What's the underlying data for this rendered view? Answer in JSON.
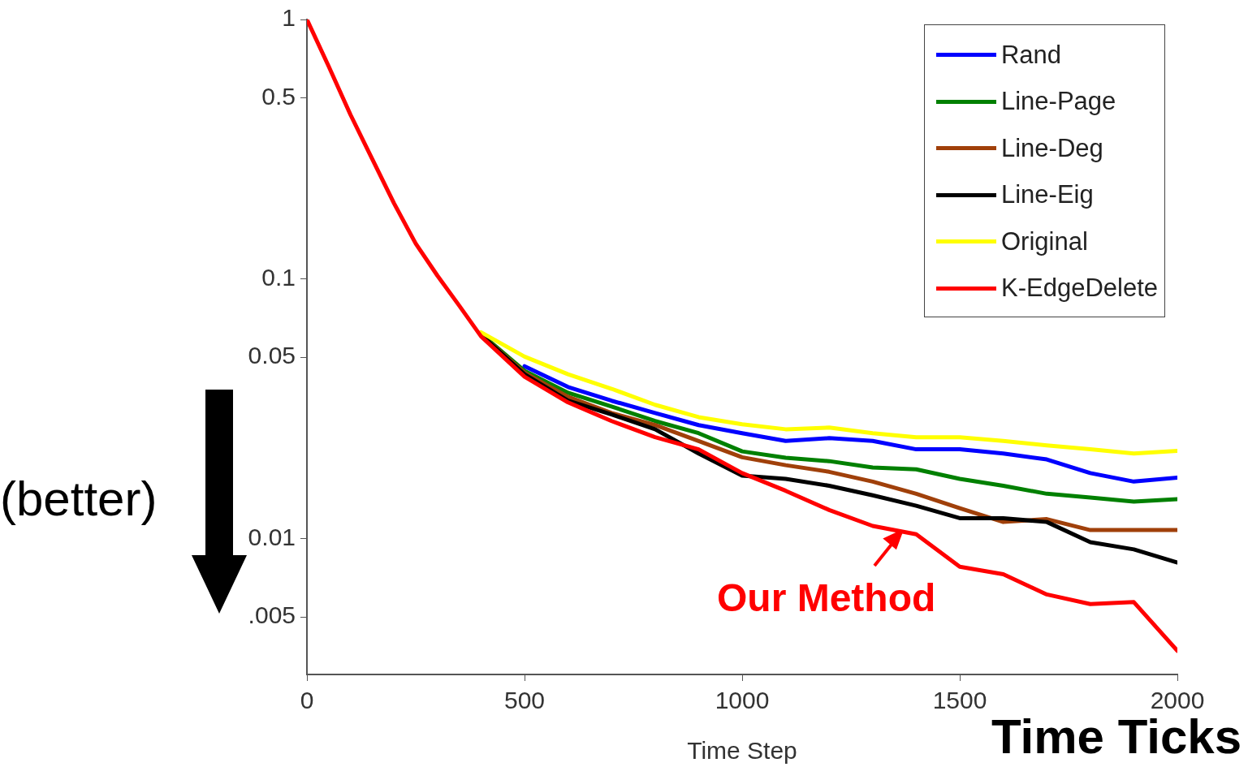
{
  "chart_data": {
    "type": "line",
    "xlabel": "Time Step",
    "log": "y",
    "grid": false,
    "legend": "top right",
    "marker": "none",
    "line_style": "solid",
    "xlim": [
      0,
      2000
    ],
    "xticks": [
      0,
      500,
      1000,
      1500,
      2000
    ],
    "ylim": [
      0.003,
      1
    ],
    "yticks": [
      1,
      0.5,
      0.1,
      0.05,
      0.01,
      {
        "value": 0.005,
        "label": ".005"
      }
    ],
    "x": [
      0,
      50,
      100,
      150,
      200,
      250,
      300,
      350,
      400,
      500,
      600,
      700,
      800,
      900,
      1000,
      1100,
      1200,
      1300,
      1400,
      1500,
      1600,
      1700,
      1800,
      1900,
      2000
    ],
    "series": [
      {
        "name": "Rand",
        "color": "#0000ff",
        "values": [
          null,
          null,
          null,
          null,
          null,
          null,
          null,
          null,
          null,
          0.0462,
          0.0384,
          0.034,
          0.0305,
          0.0274,
          0.0255,
          0.0238,
          0.0244,
          0.0238,
          0.0221,
          0.0221,
          0.0213,
          0.0202,
          0.0179,
          0.0166,
          0.0172
        ]
      },
      {
        "name": "Line-Page",
        "color": "#008000",
        "values": [
          null,
          null,
          null,
          null,
          null,
          null,
          null,
          null,
          0.0615,
          0.0443,
          0.0365,
          0.0323,
          0.0284,
          0.0255,
          0.0217,
          0.0205,
          0.0199,
          0.0188,
          0.0185,
          0.017,
          0.016,
          0.0149,
          0.0144,
          0.0139,
          0.0142
        ]
      },
      {
        "name": "Line-Deg",
        "color": "#a0400a",
        "values": [
          null,
          null,
          null,
          null,
          null,
          null,
          null,
          null,
          0.061,
          0.0436,
          0.0352,
          0.0305,
          0.0274,
          0.0238,
          0.0206,
          0.0192,
          0.0181,
          0.0166,
          0.0149,
          0.0131,
          0.0116,
          0.0119,
          0.0108,
          0.0108,
          0.0108
        ]
      },
      {
        "name": "Line-Eig",
        "color": "#000000",
        "values": [
          null,
          null,
          null,
          null,
          null,
          null,
          null,
          null,
          0.061,
          0.043,
          0.034,
          0.0301,
          0.0264,
          0.0213,
          0.0175,
          0.017,
          0.016,
          0.0147,
          0.0134,
          0.012,
          0.012,
          0.0116,
          0.0097,
          0.0091,
          0.0081
        ]
      },
      {
        "name": "Original",
        "color": "#ffff00",
        "values": [
          null,
          null,
          null,
          null,
          null,
          null,
          null,
          null,
          0.0624,
          0.0503,
          0.043,
          0.0378,
          0.0328,
          0.0294,
          0.0276,
          0.0264,
          0.0268,
          0.0255,
          0.0246,
          0.0246,
          0.0238,
          0.0229,
          0.0221,
          0.0213,
          0.0218
        ]
      },
      {
        "name": "K-EdgeDelete",
        "color": "#ff0000",
        "values": [
          1,
          0.66,
          0.43,
          0.29,
          0.196,
          0.137,
          0.103,
          0.079,
          0.0602,
          0.0421,
          0.0335,
          0.0284,
          0.0246,
          0.0221,
          0.0179,
          0.0153,
          0.0129,
          0.0112,
          0.0104,
          0.0078,
          0.0073,
          0.0061,
          0.0056,
          0.0057,
          0.0037
        ]
      }
    ],
    "annotations": [
      {
        "text": "Our Method",
        "x": 1370,
        "y": 0.011
      },
      "(better)",
      "Time Ticks"
    ]
  }
}
